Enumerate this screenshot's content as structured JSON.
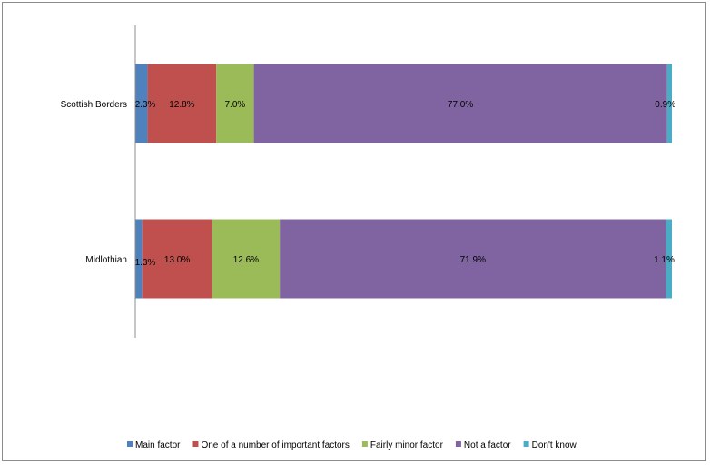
{
  "chart_data": {
    "type": "bar",
    "orientation": "horizontal",
    "stacked": true,
    "title": "",
    "xlabel": "",
    "ylabel": "",
    "xlim": [
      0,
      100
    ],
    "categories": [
      "Scottish Borders",
      "Midlothian"
    ],
    "series": [
      {
        "name": "Main factor",
        "color": "#4f81bd",
        "values": [
          2.3,
          1.3
        ],
        "labels": [
          "2.3%",
          "1.3%"
        ]
      },
      {
        "name": "One of a number of important factors",
        "color": "#c0504d",
        "values": [
          12.8,
          13.0
        ],
        "labels": [
          "12.8%",
          "13.0%"
        ]
      },
      {
        "name": "Fairly minor factor",
        "color": "#9bbb59",
        "values": [
          7.0,
          12.6
        ],
        "labels": [
          "7.0%",
          "12.6%"
        ]
      },
      {
        "name": "Not a factor",
        "color": "#8064a2",
        "values": [
          77.0,
          71.9
        ],
        "labels": [
          "77.0%",
          "71.9%"
        ]
      },
      {
        "name": "Don't know",
        "color": "#4bacc6",
        "values": [
          0.9,
          1.1
        ],
        "labels": [
          "0.9%",
          "1.1%"
        ]
      }
    ],
    "grid": false,
    "legend_position": "bottom"
  }
}
